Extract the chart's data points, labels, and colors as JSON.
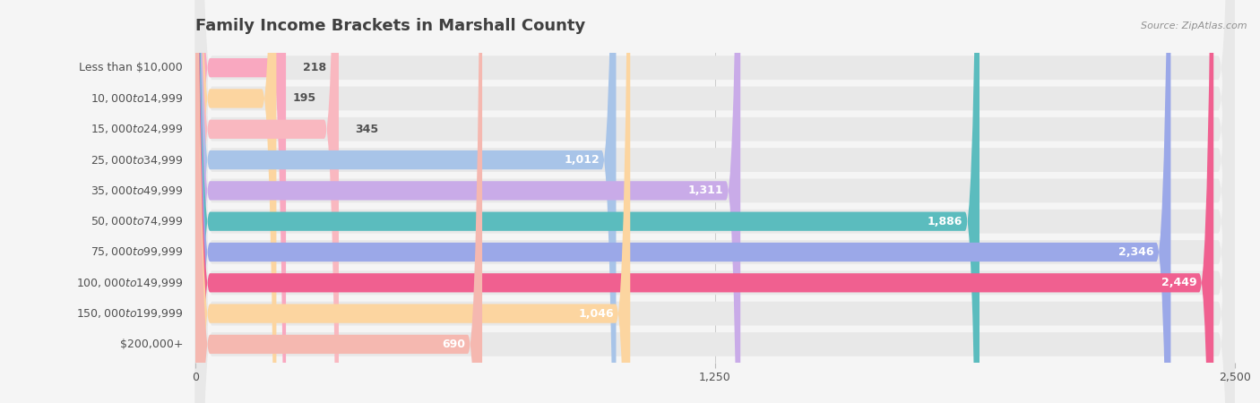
{
  "title": "Family Income Brackets in Marshall County",
  "source_text": "Source: ZipAtlas.com",
  "categories": [
    "Less than $10,000",
    "$10,000 to $14,999",
    "$15,000 to $24,999",
    "$25,000 to $34,999",
    "$35,000 to $49,999",
    "$50,000 to $74,999",
    "$75,000 to $99,999",
    "$100,000 to $149,999",
    "$150,000 to $199,999",
    "$200,000+"
  ],
  "values": [
    218,
    195,
    345,
    1012,
    1311,
    1886,
    2346,
    2449,
    1046,
    690
  ],
  "bar_colors": [
    "#f9a8c0",
    "#fcd5a0",
    "#f9b8c0",
    "#a8c4e8",
    "#c9abe8",
    "#5bbcbe",
    "#9ba8e8",
    "#f06090",
    "#fcd5a0",
    "#f5b8b0"
  ],
  "background_color": "#f5f5f5",
  "bar_background_color": "#e8e8e8",
  "xlim": [
    0,
    2500
  ],
  "xticks": [
    0,
    1250,
    2500
  ],
  "title_color": "#404040",
  "label_color": "#505050",
  "value_color_light": "#ffffff",
  "value_color_dark": "#505050",
  "source_color": "#909090",
  "title_fontsize": 13,
  "label_fontsize": 9,
  "value_fontsize": 9,
  "tick_fontsize": 9
}
